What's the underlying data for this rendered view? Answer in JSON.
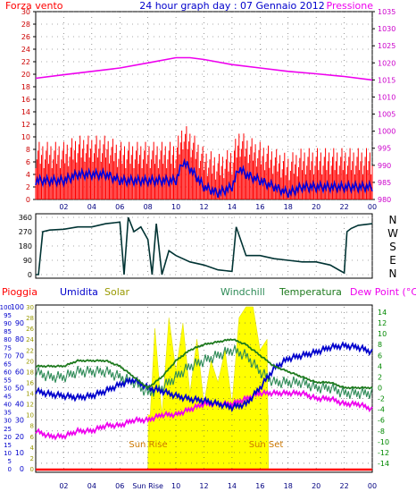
{
  "header": {
    "left_label": "Forza vento ",
    "title": "24 hour graph day : 07 Gennaio 2012",
    "right_label": "Pressione"
  },
  "colors": {
    "wind": "#ff0000",
    "gust_avg": "#0000dd",
    "pressure": "#ee00ee",
    "direction": "#003333",
    "rain": "#ff0000",
    "humidity": "#0000cc",
    "solar": "#ffff00",
    "windchill": "#2e8b57",
    "temperature": "#1e7a1e",
    "dewpoint": "#ee00ee",
    "grid": "#555555"
  },
  "time_axis": {
    "ticks": [
      "02",
      "04",
      "06",
      "08",
      "10",
      "12",
      "14",
      "16",
      "18",
      "20",
      "22",
      "00"
    ],
    "bottom_ticks": [
      "02",
      "04",
      "06",
      "Sun Rise",
      "10",
      "12",
      "14",
      "16",
      "18",
      "20",
      "22",
      "00"
    ]
  },
  "chart_data": [
    {
      "type": "line",
      "id": "wind_pressure",
      "legend": [
        "Forza vento ",
        "Pressione"
      ],
      "x_range_hours": [
        0,
        24
      ],
      "ylim_left": [
        0,
        30
      ],
      "ylim_right": [
        980,
        1035
      ],
      "yticks_left": [
        "30",
        "28",
        "26",
        "24",
        "22",
        "20",
        "18",
        "16",
        "14",
        "12",
        "10",
        "8",
        "6",
        "4",
        "2",
        "0"
      ],
      "yticks_right": [
        "1035",
        "1030",
        "1025",
        "1020",
        "1015",
        "1010",
        "1005",
        "1000",
        "995",
        "990",
        "985",
        "980"
      ],
      "series": [
        {
          "axis": "left",
          "x": [
            0,
            1,
            2,
            3,
            4,
            5,
            6,
            7,
            8,
            9,
            10,
            10.5,
            11,
            12,
            13,
            14,
            14.5,
            15,
            16,
            17,
            18,
            19,
            20,
            21,
            22,
            23,
            24
          ],
          "values": [
            3,
            3,
            3,
            4,
            4,
            4,
            3,
            3,
            3,
            3,
            3,
            6,
            5,
            2,
            1,
            2,
            5,
            4,
            3,
            2,
            1,
            2,
            2,
            2,
            2,
            2,
            2
          ]
        },
        {
          "axis": "right",
          "x": [
            0,
            2,
            4,
            6,
            8,
            10,
            11,
            12,
            14,
            16,
            18,
            20,
            22,
            24
          ],
          "values": [
            1015.5,
            1016.5,
            1017.5,
            1018.5,
            1020,
            1021.5,
            1021.5,
            1021,
            1019.5,
            1018.5,
            1017.5,
            1016.8,
            1016,
            1015
          ]
        }
      ]
    },
    {
      "type": "line",
      "id": "wind_direction",
      "yticks_left": [
        "360",
        "270",
        "180",
        "90",
        "0"
      ],
      "yticks_right": [
        "N",
        "W",
        "S",
        "E",
        "N"
      ],
      "ylim": [
        0,
        360
      ],
      "x": [
        0,
        0.2,
        0.5,
        1,
        2,
        3,
        4,
        5,
        6,
        6.3,
        6.6,
        7,
        7.5,
        8,
        8.3,
        8.6,
        9,
        9.5,
        10,
        11,
        12,
        13,
        14,
        14.3,
        15,
        16,
        17,
        18,
        19,
        20,
        21,
        22,
        22.2,
        22.5,
        23,
        24
      ],
      "values": [
        0,
        0,
        270,
        280,
        285,
        300,
        300,
        320,
        330,
        0,
        360,
        270,
        300,
        220,
        0,
        320,
        0,
        150,
        120,
        80,
        60,
        30,
        20,
        300,
        120,
        120,
        100,
        90,
        80,
        80,
        60,
        10,
        270,
        290,
        310,
        320
      ]
    },
    {
      "type": "line",
      "id": "temp_humidity_rain",
      "legend": [
        "Pioggia",
        "Umidita",
        "Solar",
        "Windchill",
        "Temperatura",
        "Dew Point (°C)"
      ],
      "yticks_rain": [
        "100",
        "95",
        "90",
        "85",
        "80",
        "75",
        "70",
        "65",
        "60",
        "55",
        "50",
        "45",
        "40",
        "35",
        "30",
        "25",
        "20",
        "15",
        "10",
        "5",
        "0"
      ],
      "yticks_hum": [
        "100",
        "90",
        "80",
        "70",
        "60",
        "50",
        "40",
        "30",
        "20",
        "10",
        "0"
      ],
      "yticks_solar": [
        "30",
        "28",
        "26",
        "24",
        "22",
        "20",
        "18",
        "16",
        "14",
        "12",
        "10",
        "8",
        "6",
        "4",
        "2",
        "0"
      ],
      "yticks_temp": [
        "14",
        "12",
        "10",
        "8",
        "6",
        "4",
        "2",
        "0",
        "-2",
        "-4",
        "-6",
        "-8",
        "-10",
        "-12",
        "-14"
      ],
      "ylim_temp": [
        -15,
        15
      ],
      "annotations": [
        "Sun Rise",
        "Sun Set"
      ],
      "series": [
        {
          "name": "Umidita",
          "axis": "hum",
          "x": [
            0,
            1,
            2,
            3,
            4,
            5,
            6,
            7,
            8,
            9,
            10,
            11,
            12,
            13,
            14,
            15,
            16,
            17,
            18,
            19,
            20,
            21,
            22,
            23,
            24
          ],
          "values": [
            48,
            46,
            45,
            44,
            45,
            48,
            52,
            55,
            50,
            48,
            45,
            43,
            42,
            40,
            38,
            40,
            50,
            62,
            68,
            70,
            72,
            75,
            76,
            75,
            72
          ]
        },
        {
          "name": "Solar",
          "axis": "solar",
          "x": [
            8,
            8.5,
            9,
            9.5,
            10,
            10.5,
            11,
            11.5,
            12,
            12.5,
            13,
            13.5,
            14,
            14.5,
            15,
            15.5,
            16,
            16.5,
            16.6
          ],
          "values": [
            2,
            26,
            10,
            28,
            18,
            27,
            14,
            24,
            12,
            20,
            16,
            22,
            12,
            28,
            30,
            30,
            22,
            24,
            0
          ]
        },
        {
          "name": "Windchill",
          "axis": "temp",
          "x": [
            0,
            1,
            2,
            3,
            4,
            5,
            6,
            7,
            8,
            9,
            10,
            11,
            12,
            13,
            14,
            15,
            16,
            17,
            18,
            19,
            20,
            21,
            22,
            23,
            24
          ],
          "values": [
            3,
            2,
            2,
            3,
            3,
            3,
            2,
            1,
            -1,
            0,
            2,
            4,
            5,
            6,
            7,
            6,
            3,
            1,
            1,
            1,
            0,
            0,
            -1,
            -1,
            -1
          ]
        },
        {
          "name": "Temperatura",
          "axis": "temp",
          "x": [
            0,
            1,
            2,
            3,
            4,
            5,
            6,
            7,
            8,
            9,
            10,
            11,
            12,
            13,
            14,
            15,
            16,
            17,
            18,
            19,
            20,
            21,
            22,
            23,
            24
          ],
          "values": [
            4,
            4,
            4,
            5,
            5,
            5,
            4,
            2,
            0,
            2,
            5,
            7,
            8,
            8.5,
            9,
            8,
            6,
            4,
            3,
            2,
            1,
            1,
            0,
            0,
            0
          ]
        },
        {
          "name": "Dew Point (°C)",
          "axis": "temp",
          "x": [
            0,
            1,
            2,
            3,
            4,
            5,
            6,
            7,
            8,
            9,
            10,
            11,
            12,
            13,
            14,
            15,
            16,
            17,
            18,
            19,
            20,
            21,
            22,
            23,
            24
          ],
          "values": [
            -8,
            -9,
            -9,
            -8,
            -8,
            -7,
            -7,
            -6,
            -6,
            -5,
            -5,
            -4,
            -3,
            -3,
            -3,
            -2,
            -1,
            -1,
            -1,
            -1,
            -2,
            -2,
            -3,
            -3,
            -4
          ]
        },
        {
          "name": "Pioggia",
          "axis": "rain",
          "x": [
            0,
            24
          ],
          "values": [
            0,
            0
          ]
        }
      ]
    }
  ]
}
